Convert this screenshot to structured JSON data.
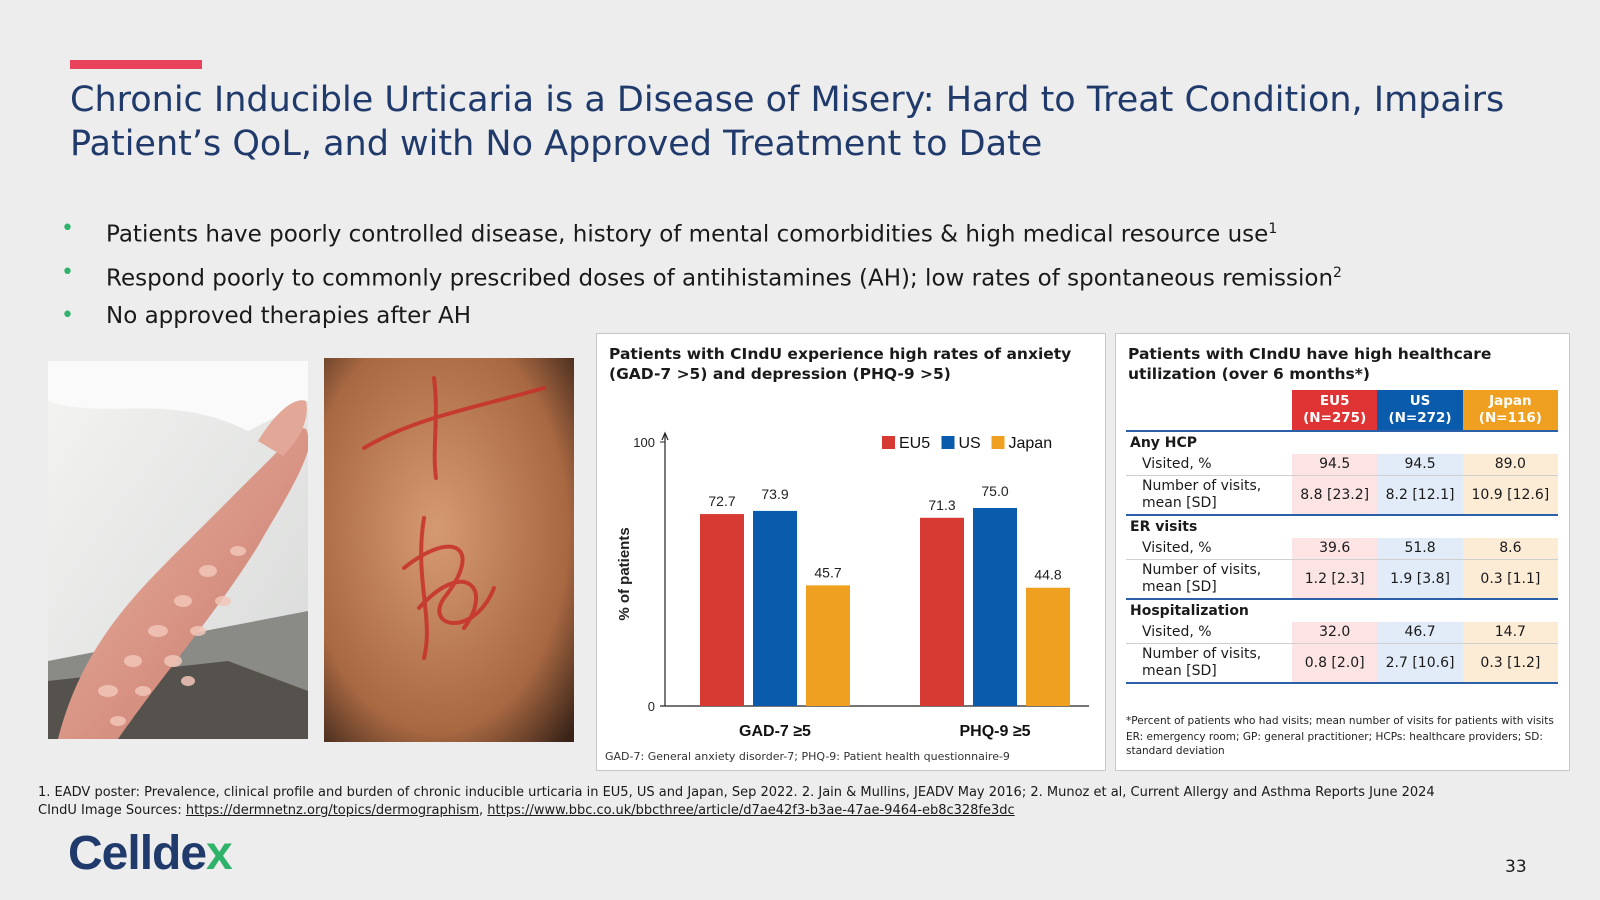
{
  "slide": {
    "title_line1": "Chronic Inducible Urticaria is a Disease of Misery: Hard to Treat Condition, Impairs",
    "title_line2": "Patient’s QoL, and with No Approved Treatment to Date",
    "bullets": [
      {
        "text": "Patients have poorly controlled disease, history of mental comorbidities & high medical resource use",
        "sup": "1"
      },
      {
        "text": "Respond poorly to commonly prescribed doses of antihistamines (AH); low rates of spontaneous remission",
        "sup": "2"
      },
      {
        "text": "No approved therapies after AH",
        "sup": ""
      }
    ],
    "bullet_symbol": "•",
    "accent_color": "#e8435a",
    "title_color": "#1f3a6b",
    "bullet_color": "#2fb36b"
  },
  "chart_panel": {
    "title_line1": "Patients with CIndU experience high rates of anxiety",
    "title_line2": "(GAD-7 >5) and depression (PHQ-9 >5)",
    "note": "GAD-7: General anxiety disorder-7; PHQ-9: Patient health questionnaire-9"
  },
  "chart_data": {
    "type": "bar",
    "categories": [
      "GAD-7 ≥5",
      "PHQ-9 ≥5"
    ],
    "series": [
      {
        "name": "EU5",
        "values": [
          72.7,
          71.3
        ],
        "color": "#d63a33"
      },
      {
        "name": "US",
        "values": [
          73.9,
          75.0
        ],
        "color": "#0a5bab"
      },
      {
        "name": "Japan",
        "values": [
          45.7,
          44.8
        ],
        "color": "#f0a020"
      }
    ],
    "ylabel": "% of patients",
    "ylim": [
      0,
      100
    ],
    "yticks": [
      "0",
      "100"
    ],
    "value_labels": [
      [
        "72.7",
        "71.3"
      ],
      [
        "73.9",
        "75.0"
      ],
      [
        "45.7",
        "44.8"
      ]
    ],
    "legend": "top-right",
    "grid": false
  },
  "table_panel": {
    "title_line1": "Patients with CIndU have high healthcare",
    "title_line2": "utilization (over 6 months*)",
    "columns": [
      {
        "name": "EU5",
        "n": "(N=275)",
        "color": "#e03434"
      },
      {
        "name": "US",
        "n": "(N=272)",
        "color": "#0a5bab"
      },
      {
        "name": "Japan",
        "n": "(N=116)",
        "color": "#f0a020"
      }
    ],
    "groups": [
      {
        "label": "Any HCP",
        "rows": [
          {
            "label": [
              "Visited, %"
            ],
            "values": [
              "94.5",
              "94.5",
              "89.0"
            ]
          },
          {
            "label": [
              "Number of visits,",
              "mean [SD]"
            ],
            "values": [
              "8.8 [23.2]",
              "8.2 [12.1]",
              "10.9 [12.6]"
            ]
          }
        ]
      },
      {
        "label": "ER visits",
        "rows": [
          {
            "label": [
              "Visited, %"
            ],
            "values": [
              "39.6",
              "51.8",
              "8.6"
            ]
          },
          {
            "label": [
              "Number of visits,",
              "mean [SD]"
            ],
            "values": [
              "1.2 [2.3]",
              "1.9 [3.8]",
              "0.3 [1.1]"
            ]
          }
        ]
      },
      {
        "label": "Hospitalization",
        "rows": [
          {
            "label": [
              "Visited, %"
            ],
            "values": [
              "32.0",
              "46.7",
              "14.7"
            ]
          },
          {
            "label": [
              "Number of visits,",
              "mean [SD]"
            ],
            "values": [
              "0.8 [2.0]",
              "2.7 [10.6]",
              "0.3 [1.2]"
            ]
          }
        ]
      }
    ],
    "note1": "*Percent of patients who had visits; mean number of visits for patients with visits",
    "note2": "ER: emergency room; GP: general practitioner; HCPs: healthcare providers; SD: standard deviation"
  },
  "footnotes": {
    "line1": "1. EADV poster: Prevalence, clinical profile and burden of chronic inducible urticaria in EU5, US and Japan, Sep 2022. 2. Jain & Mullins, JEADV May 2016; 2. Munoz et al, Current Allergy and Asthma Reports June 2024",
    "line2_prefix": "CIndU Image Sources: ",
    "link1": "https://dermnetnz.org/topics/dermographism",
    "separator": ", ",
    "link2": "https://www.bbc.co.uk/bbcthree/article/d7ae42f3-b3ae-47ae-9464-eb8c328fe3dc"
  },
  "logo": {
    "part1": "Cellde",
    "part2": "x"
  },
  "page_number": "33"
}
